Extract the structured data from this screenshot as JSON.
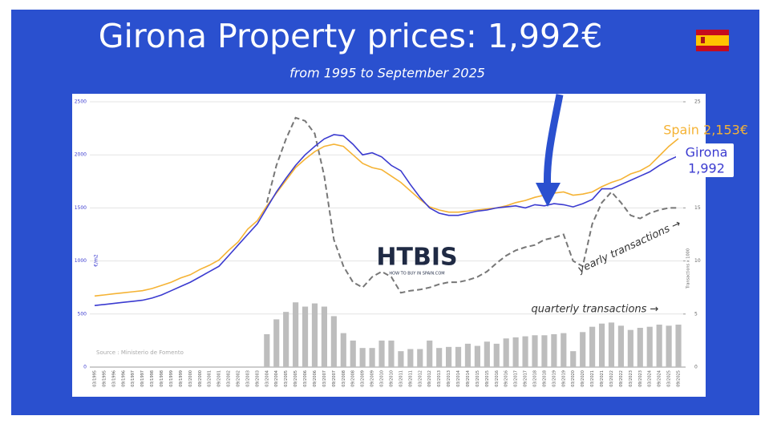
{
  "chart_data": {
    "type": "line",
    "title": "Girona Property prices: 1,992€",
    "subtitle": "from 1995 to September 2025",
    "y_label": "€/m2",
    "y2_label": "Transactions x 1000",
    "annotations": [
      "1,992",
      "Source : Ministerio de Fomento",
      "HTBIS",
      "HOW TO BUY IN SPAIN.COM"
    ],
    "categories": [
      "03/1995",
      "09/1995",
      "03/1996",
      "09/1996",
      "03/1997",
      "09/1997",
      "03/1998",
      "09/1998",
      "03/1999",
      "09/1999",
      "03/2000",
      "09/2000",
      "03/2001",
      "09/2001",
      "03/2002",
      "09/2002",
      "03/2003",
      "09/2003",
      "03/2004",
      "09/2004",
      "03/2005",
      "09/2005",
      "03/2006",
      "09/2006",
      "03/2007",
      "09/2007",
      "03/2008",
      "09/2008",
      "03/2009",
      "09/2009",
      "03/2010",
      "09/2010",
      "03/2011",
      "09/2011",
      "03/2012",
      "09/2012",
      "03/2013",
      "09/2013",
      "03/2014",
      "09/2014",
      "03/2015",
      "09/2015",
      "03/2016",
      "09/2016",
      "03/2017",
      "09/2017",
      "03/2018",
      "09/2018",
      "03/2019",
      "09/2019",
      "03/2020",
      "09/2020",
      "03/2021",
      "09/2021",
      "03/2022",
      "09/2022",
      "03/2023",
      "09/2023",
      "03/2024",
      "09/2024",
      "03/2025",
      "09/2025"
    ],
    "ylim": [
      0,
      2500
    ],
    "yticks": [
      0,
      500,
      1000,
      1500,
      2000,
      2500
    ],
    "y2lim": [
      0,
      25
    ],
    "y2ticks": [
      0,
      5,
      10,
      15,
      20,
      25
    ],
    "grid": true,
    "series": [
      {
        "name": "quarterly transactions →",
        "type": "bar",
        "axis": "y2",
        "color": "#bdbdbd",
        "values": [
          null,
          null,
          null,
          null,
          null,
          null,
          null,
          null,
          null,
          null,
          null,
          null,
          null,
          null,
          null,
          null,
          null,
          null,
          3.1,
          4.5,
          5.2,
          6.1,
          5.7,
          6.0,
          5.7,
          4.8,
          3.2,
          2.5,
          1.8,
          1.8,
          2.5,
          2.5,
          1.5,
          1.7,
          1.7,
          2.5,
          1.8,
          1.9,
          1.9,
          2.2,
          2.0,
          2.4,
          2.2,
          2.7,
          2.8,
          2.9,
          3.0,
          3.0,
          3.1,
          3.2,
          1.5,
          3.3,
          3.8,
          4.1,
          4.2,
          3.9,
          3.5,
          3.7,
          3.8,
          4.0,
          3.9,
          4.0
        ]
      },
      {
        "name": "yearly transactions →",
        "type": "dashed",
        "axis": "y2",
        "color": "#777777",
        "values": [
          null,
          null,
          null,
          null,
          null,
          null,
          null,
          null,
          null,
          null,
          null,
          null,
          null,
          null,
          null,
          null,
          null,
          null,
          15.5,
          19,
          21.5,
          23.5,
          23.2,
          22,
          18,
          12,
          9.5,
          8,
          7.5,
          8.5,
          9,
          8.5,
          7,
          7.2,
          7.3,
          7.5,
          7.8,
          8,
          8,
          8.2,
          8.5,
          9,
          9.8,
          10.5,
          11,
          11.3,
          11.5,
          12,
          12.2,
          12.5,
          10,
          9.5,
          13.5,
          15.5,
          16.5,
          15.5,
          14.3,
          14,
          14.5,
          14.8,
          15,
          15
        ]
      },
      {
        "name": "Spain 2,153€",
        "type": "line",
        "color": "#f5b335",
        "values": [
          670,
          680,
          690,
          700,
          710,
          720,
          740,
          770,
          800,
          840,
          870,
          920,
          960,
          1010,
          1100,
          1180,
          1300,
          1380,
          1520,
          1640,
          1760,
          1880,
          1960,
          2030,
          2080,
          2100,
          2080,
          2000,
          1920,
          1880,
          1860,
          1800,
          1740,
          1660,
          1580,
          1510,
          1480,
          1460,
          1460,
          1470,
          1480,
          1490,
          1500,
          1520,
          1550,
          1570,
          1600,
          1620,
          1640,
          1650,
          1620,
          1630,
          1650,
          1700,
          1740,
          1770,
          1820,
          1850,
          1900,
          1990,
          2080,
          2153
        ]
      },
      {
        "name": "Girona",
        "type": "line",
        "color": "#3b3bd0",
        "values": [
          580,
          590,
          600,
          610,
          620,
          630,
          650,
          680,
          720,
          760,
          800,
          850,
          900,
          950,
          1050,
          1150,
          1250,
          1350,
          1500,
          1650,
          1780,
          1900,
          2000,
          2080,
          2150,
          2190,
          2180,
          2100,
          2000,
          2020,
          1980,
          1900,
          1850,
          1720,
          1600,
          1500,
          1450,
          1430,
          1430,
          1450,
          1470,
          1480,
          1500,
          1510,
          1520,
          1500,
          1530,
          1520,
          1540,
          1530,
          1510,
          1540,
          1580,
          1680,
          1680,
          1720,
          1760,
          1800,
          1840,
          1900,
          1950,
          1992
        ]
      }
    ]
  }
}
